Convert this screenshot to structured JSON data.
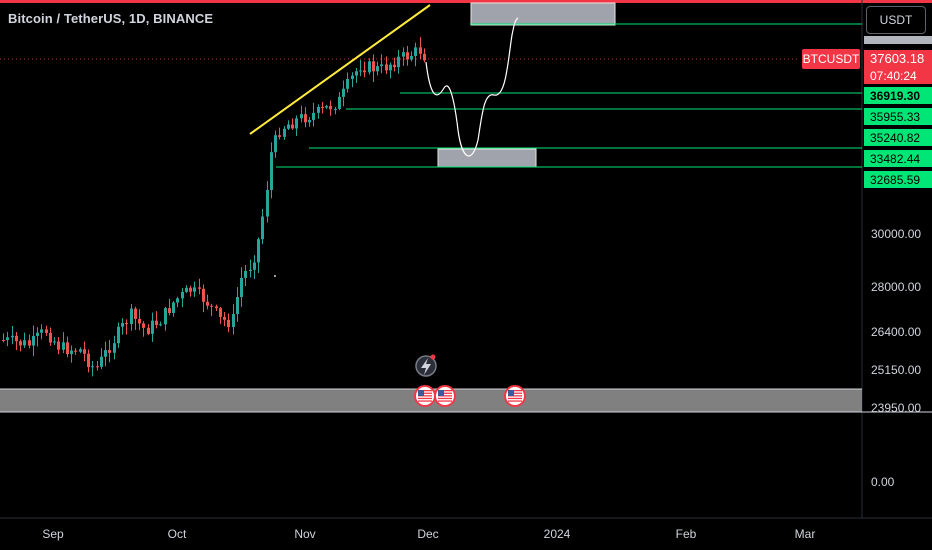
{
  "header": {
    "title": "Bitcoin / TetherUS, 1D, BINANCE",
    "currency_button": "USDT"
  },
  "colors": {
    "up": "#26a69a",
    "down": "#ef5350",
    "level_line": "#00e676",
    "trend_line": "#ffeb3b",
    "zone": "#b2b5be",
    "price_tag": "#f23645",
    "level_tag": "#00e676"
  },
  "tags": {
    "symbol": "BTCUSDT",
    "last_price": "37603.18",
    "countdown": "07:40:24",
    "levels": [
      "36919.30",
      "35955.33",
      "35240.82",
      "33482.44",
      "32685.59"
    ]
  },
  "chart_data": {
    "type": "candlestick",
    "x_ticks": [
      "Sep",
      "Oct",
      "Nov",
      "Dec",
      "2024",
      "Feb",
      "Mar"
    ],
    "y_ticks": [
      "30000.00",
      "28000.00",
      "26400.00",
      "25150.00",
      "23950.00",
      "0.00"
    ],
    "last_price": 37603.18,
    "horizontal_levels": [
      36919.3,
      35955.33,
      35240.82,
      33482.44,
      32685.59
    ],
    "annotations": {
      "icons": [
        "lightning-icon",
        "us-flag-icon",
        "us-flag-icon",
        "us-flag-icon"
      ]
    }
  }
}
